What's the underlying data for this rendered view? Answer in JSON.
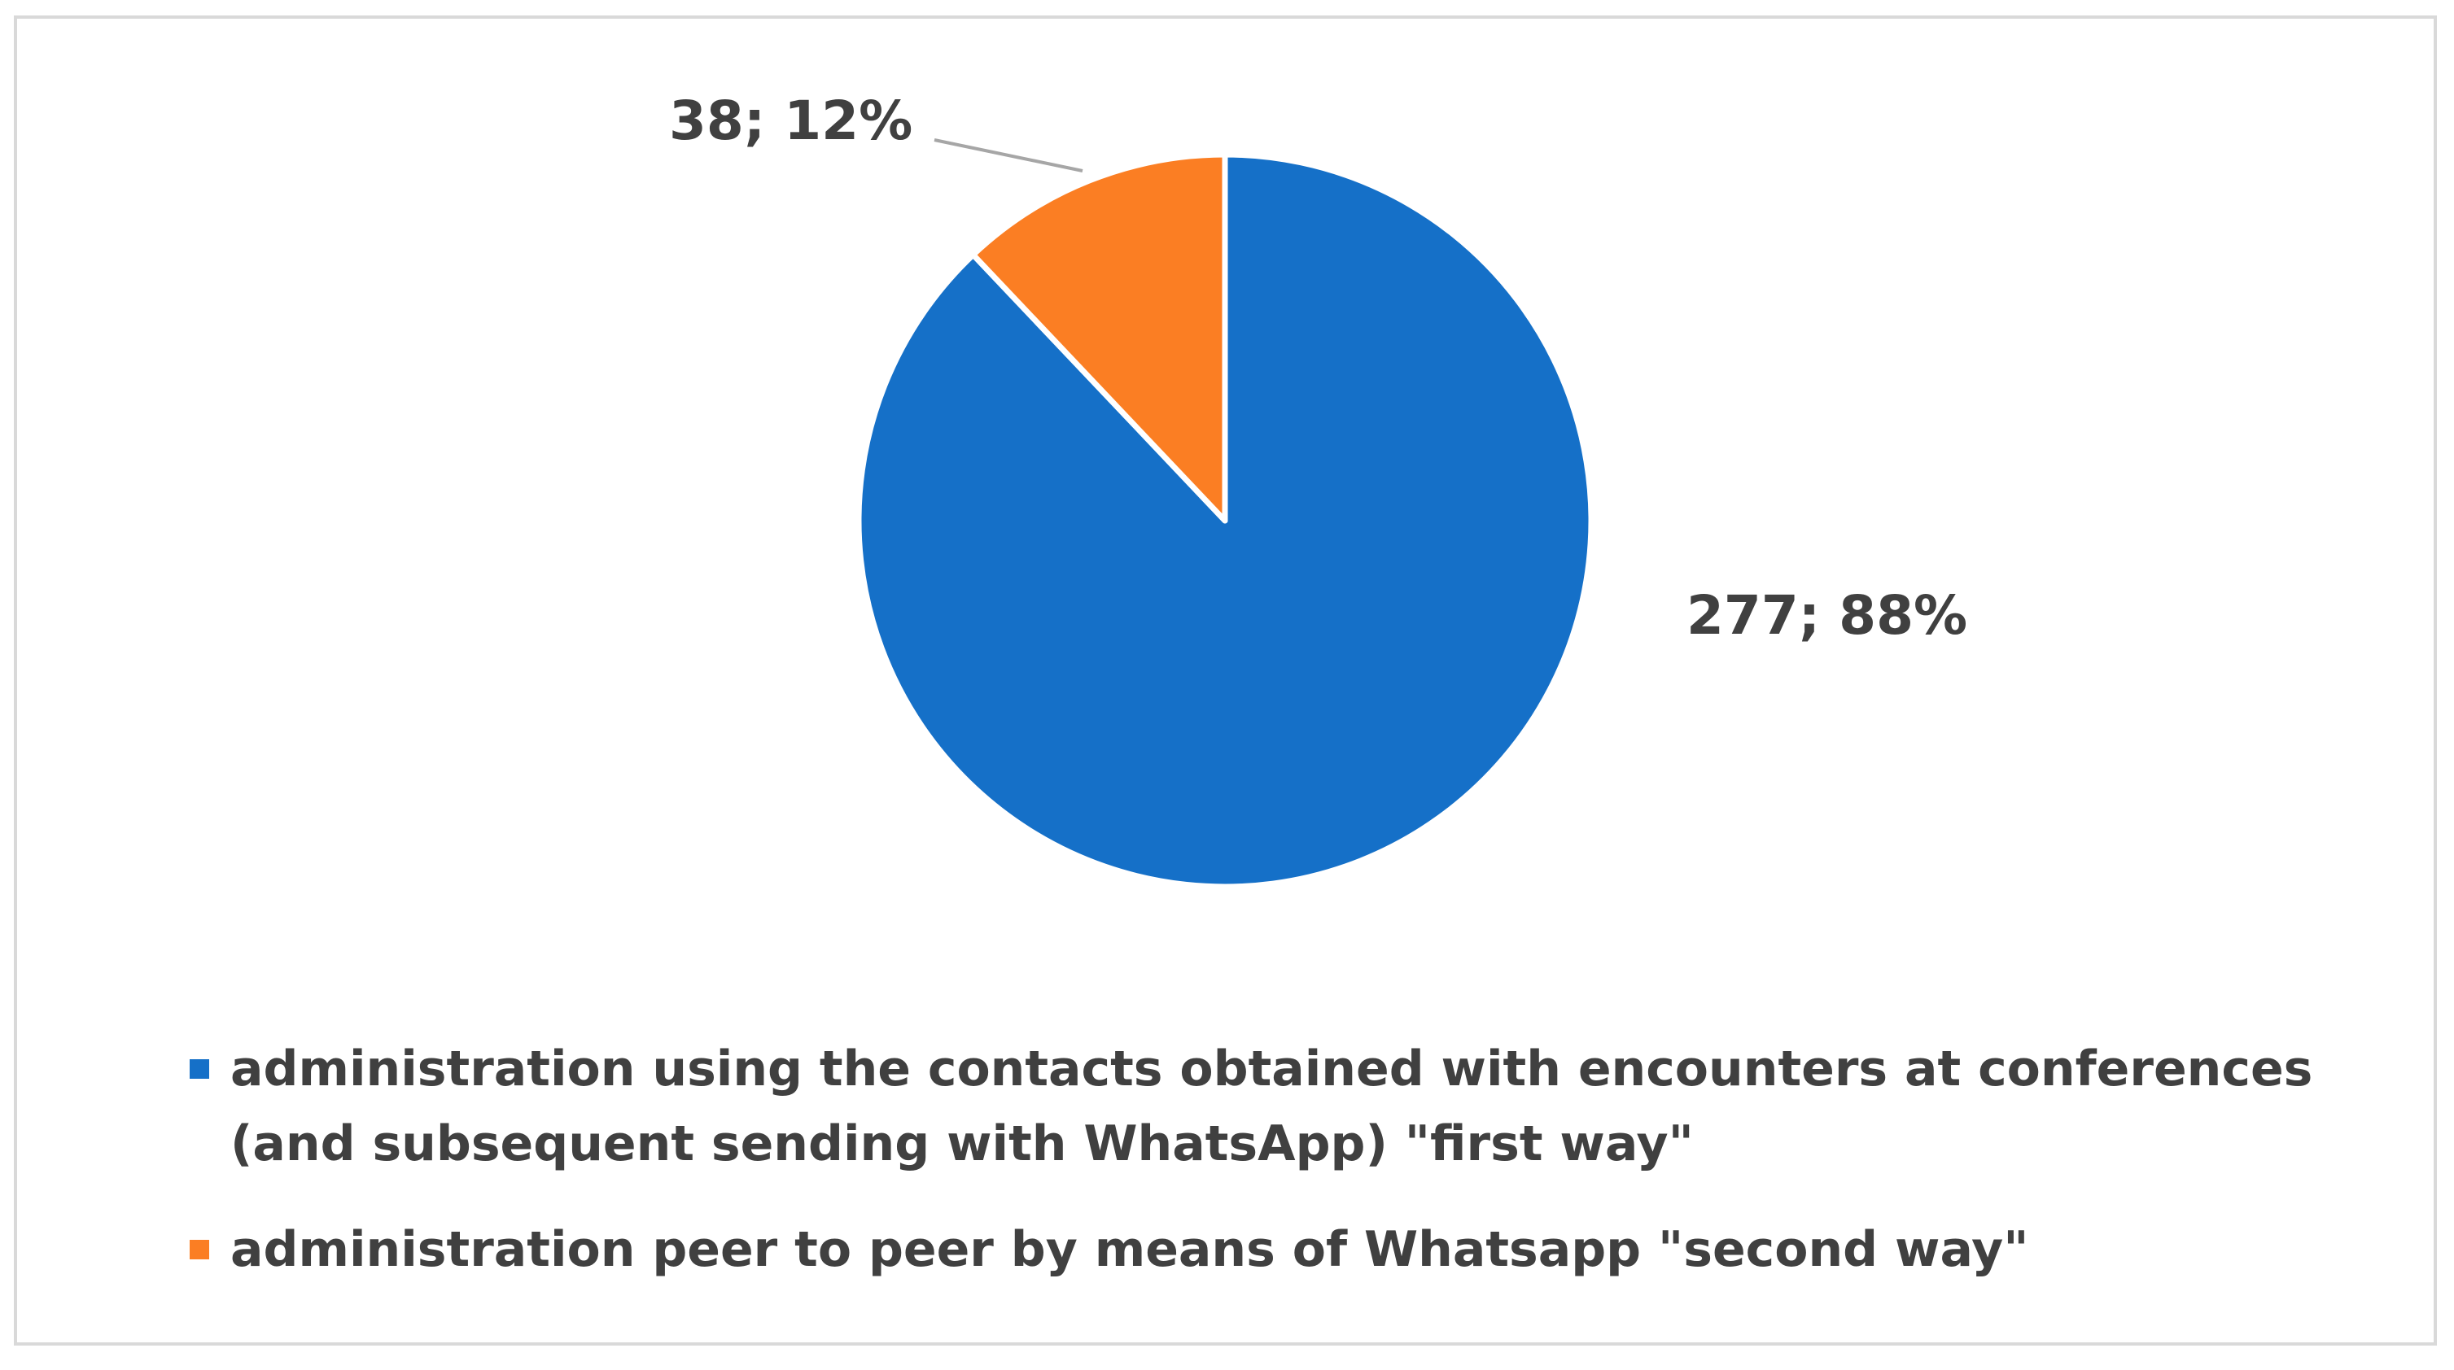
{
  "chart_data": {
    "type": "pie",
    "title": "",
    "series": [
      {
        "values": [
          277,
          38
        ],
        "percentages": [
          88,
          12
        ],
        "labels": [
          "277; 88%",
          "38; 12%"
        ],
        "colors": [
          "#1570C8",
          "#FB7E23"
        ]
      }
    ],
    "categories": [
      "administration using the contacts obtained with encounters at conferences (and subsequent sending with WhatsApp) \"first way\"",
      "administration peer to peer by means of Whatsapp \"second way\""
    ],
    "legend": {
      "position": "bottom",
      "entries": [
        "administration using the contacts obtained with encounters at conferences (and subsequent sending with WhatsApp) \"first way\"",
        "administration peer to peer by means of Whatsapp \"second way\""
      ]
    },
    "start_angle": "12 o'clock",
    "direction": "clockwise",
    "slice_border_color": "#FFFFFF",
    "label_text_color": "#404040",
    "frame_border_color": "#D9D9D9"
  }
}
